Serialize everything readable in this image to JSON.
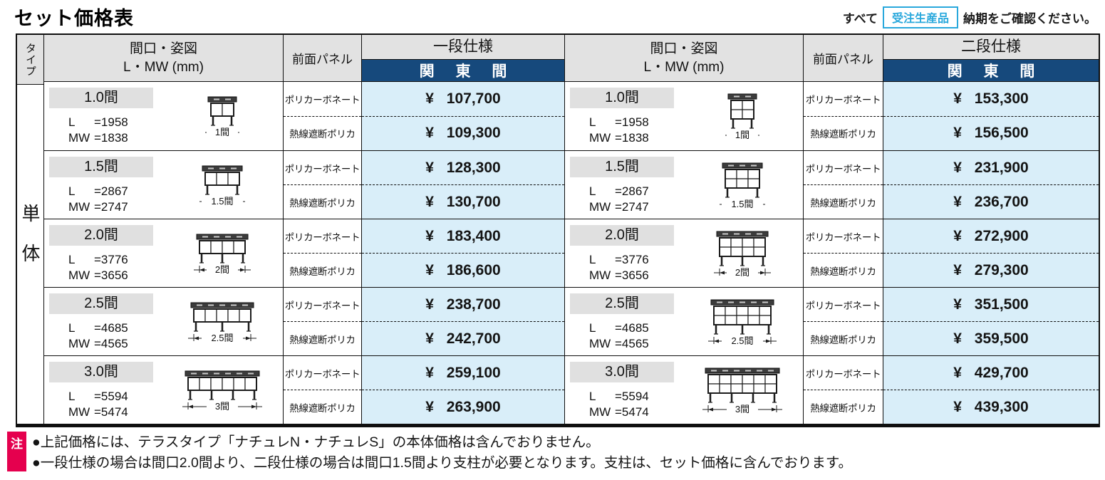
{
  "page_title": "セット価格表",
  "top_note": {
    "prefix": "すべて",
    "badge": "受注生産品",
    "suffix": "納期をご確認ください。"
  },
  "table": {
    "type_header": "タイプ",
    "type_value": "単体",
    "col_headers": {
      "facade_title": "間口・姿図",
      "facade_sub": "L・MW (mm)",
      "panel": "前面パネル",
      "spec_one": "一段仕様",
      "spec_two": "二段仕様",
      "region": "関 東 間"
    },
    "dim_keys": [
      "L",
      "MW"
    ],
    "panel_types": [
      "ポリカーボネート",
      "熱線遮断ポリカ"
    ],
    "rows": [
      {
        "size": "1.0間",
        "L": "=1958",
        "MW": "=1838",
        "dim_label": "1間",
        "columns": 2,
        "prices_one": [
          "¥ 107,700",
          "¥ 109,300"
        ],
        "prices_two": [
          "¥ 153,300",
          "¥ 156,500"
        ]
      },
      {
        "size": "1.5間",
        "L": "=2867",
        "MW": "=2747",
        "dim_label": "1.5間",
        "columns": 3,
        "prices_one": [
          "¥ 128,300",
          "¥ 130,700"
        ],
        "prices_two": [
          "¥ 231,900",
          "¥ 236,700"
        ]
      },
      {
        "size": "2.0間",
        "L": "=3776",
        "MW": "=3656",
        "dim_label": "2間",
        "columns": 4,
        "prices_one": [
          "¥ 183,400",
          "¥ 186,600"
        ],
        "prices_two": [
          "¥ 272,900",
          "¥ 279,300"
        ]
      },
      {
        "size": "2.5間",
        "L": "=4685",
        "MW": "=4565",
        "dim_label": "2.5間",
        "columns": 5,
        "prices_one": [
          "¥ 238,700",
          "¥ 242,700"
        ],
        "prices_two": [
          "¥ 351,500",
          "¥ 359,500"
        ]
      },
      {
        "size": "3.0間",
        "L": "=5594",
        "MW": "=5474",
        "dim_label": "3間",
        "columns": 6,
        "prices_one": [
          "¥ 259,100",
          "¥ 263,900"
        ],
        "prices_two": [
          "¥ 429,700",
          "¥ 439,300"
        ]
      }
    ]
  },
  "notes": {
    "badge": "注",
    "items": [
      "●上記価格には、テラスタイプ「ナチュレN・ナチュレS」の本体価格は含んでおりません。",
      "●一段仕様の場合は間口2.0間より、二段仕様の場合は間口1.5間より支柱が必要となります。支柱は、セット価格に含んでおります。"
    ]
  },
  "colors": {
    "header_gray": "#e2e2e2",
    "band_blue": "#16497c",
    "price_blue": "#d9eef9",
    "accent_cyan": "#29a8dc",
    "note_red": "#e5004e",
    "size_label_gray": "#e0e0e0"
  }
}
